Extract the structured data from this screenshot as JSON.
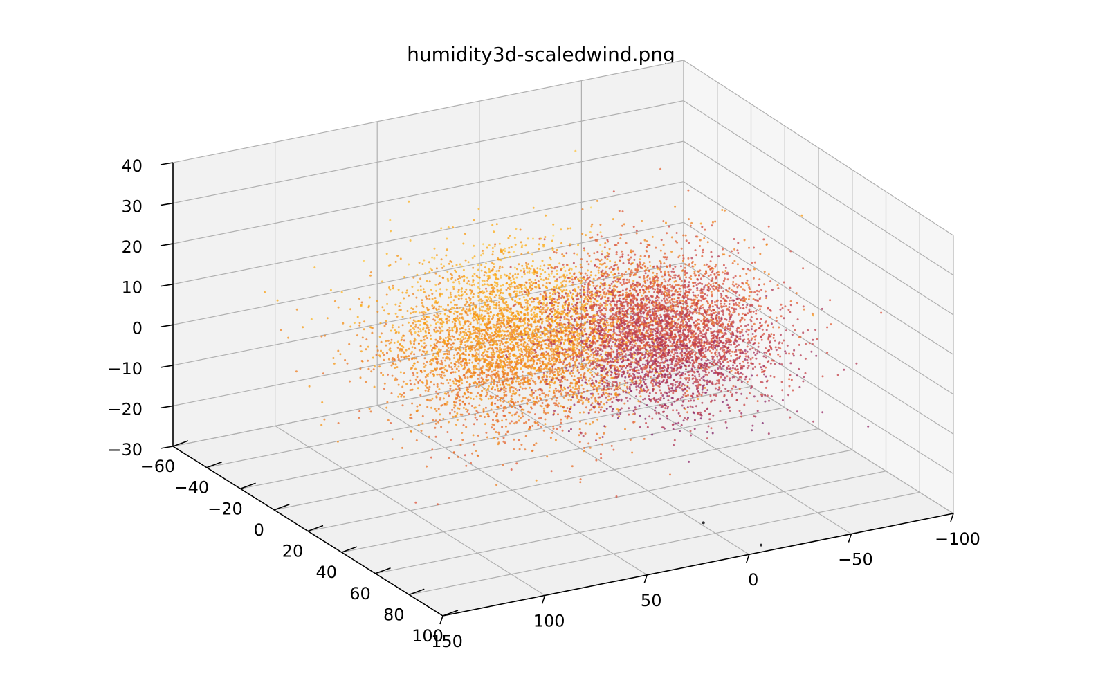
{
  "chart_data": {
    "type": "scatter",
    "title": "humidity3d-scaledwind.png",
    "projection": "3d",
    "xlabel": "",
    "ylabel": "",
    "zlabel": "",
    "x_axis": {
      "lim": [
        -100,
        150
      ],
      "ticks": [
        -100,
        -50,
        0,
        50,
        100,
        150
      ],
      "tick_labels": [
        "−100",
        "−50",
        "0",
        "50",
        "100",
        "150"
      ]
    },
    "y_axis": {
      "lim": [
        -60,
        100
      ],
      "ticks": [
        -60,
        -40,
        -20,
        0,
        20,
        40,
        60,
        80,
        100
      ],
      "tick_labels": [
        "−60",
        "−40",
        "−20",
        "0",
        "20",
        "40",
        "60",
        "80",
        "100"
      ]
    },
    "z_axis": {
      "lim": [
        -30,
        40
      ],
      "ticks": [
        -30,
        -20,
        -10,
        0,
        10,
        20,
        30,
        40
      ],
      "tick_labels": [
        "−30",
        "−20",
        "−10",
        "0",
        "10",
        "20",
        "30",
        "40"
      ]
    },
    "grid": true,
    "colormap": "inferno",
    "colormap_stops": [
      "#000004",
      "#420a68",
      "#932667",
      "#dd513a",
      "#fca50a",
      "#fcffa4"
    ],
    "point_count_approx": 20000,
    "clusters": [
      {
        "name": "",
        "center": [
          40,
          10,
          3
        ],
        "spread": [
          28,
          18,
          9
        ],
        "share": 0.5,
        "color_range": [
          0.55,
          0.92
        ]
      },
      {
        "name": "",
        "center": [
          -25,
          20,
          2
        ],
        "spread": [
          22,
          18,
          8
        ],
        "share": 0.5,
        "color_range": [
          0.25,
          0.82
        ]
      }
    ],
    "outliers": [
      {
        "x": 10,
        "y": 85,
        "z": -25,
        "color": 0.0
      },
      {
        "x": -10,
        "y": 95,
        "z": -30,
        "color": 0.0
      }
    ]
  }
}
